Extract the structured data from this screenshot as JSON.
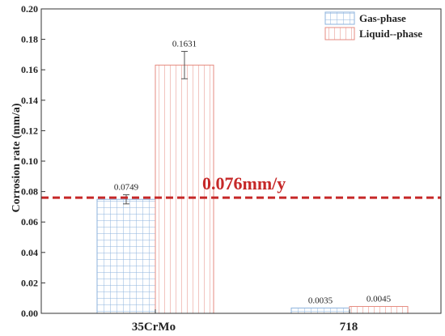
{
  "chart_data": {
    "type": "bar",
    "title": "",
    "xlabel": "",
    "ylabel": "Corrosion rate (mm/a)",
    "categories": [
      "35CrMo",
      "718"
    ],
    "series": [
      {
        "name": "Gas-phase",
        "values": [
          0.0749,
          0.0035
        ],
        "data_labels": [
          "0.0749",
          "0.0035"
        ],
        "error": [
          0.003,
          0
        ],
        "color": "#7aa6d6",
        "pattern": "grid"
      },
      {
        "name": "Liquid--phase",
        "values": [
          0.1631,
          0.0045
        ],
        "data_labels": [
          "0.1631",
          "0.0045"
        ],
        "error": [
          0.009,
          0
        ],
        "color": "#e07a6f",
        "pattern": "vertical-lines"
      }
    ],
    "ylim": [
      0,
      0.2
    ],
    "yticks": [
      0,
      0.02,
      0.04,
      0.06,
      0.08,
      0.1,
      0.12,
      0.14,
      0.16,
      0.18,
      0.2
    ],
    "ytick_labels": [
      "0.00",
      "0.02",
      "0.04",
      "0.06",
      "0.08",
      "0.10",
      "0.12",
      "0.14",
      "0.16",
      "0.18",
      "0.20"
    ],
    "reference_line": {
      "value": 0.076,
      "label": "0.076mm/y",
      "color": "#c62828",
      "style": "dashed"
    },
    "legend": {
      "placement": "top-right"
    },
    "grid": false
  }
}
